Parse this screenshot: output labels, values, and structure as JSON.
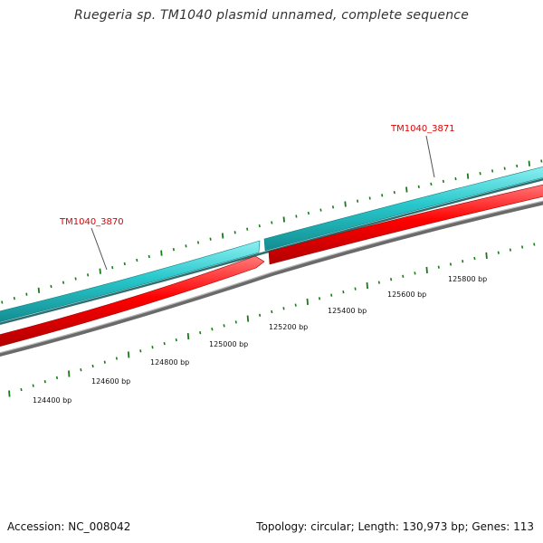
{
  "title": "Ruegeria sp. TM1040 plasmid unnamed, complete sequence",
  "genes": [
    {
      "id": "TM1040_3870",
      "strand": "reverse",
      "color": "#ff0000"
    },
    {
      "id": "TM1040_3871",
      "strand": "forward",
      "color": "#22c8cc"
    }
  ],
  "bp_ticks": [
    "124400 bp",
    "124600 bp",
    "124800 bp",
    "125000 bp",
    "125200 bp",
    "125400 bp",
    "125600 bp",
    "125800 bp"
  ],
  "colors": {
    "forward_track": "#22c8cc",
    "reverse_track": "#ff0000",
    "backbone": "#808080",
    "ticks": "#1a7a1a",
    "gene_label": "#e00000"
  },
  "footer": {
    "accession": "Accession: NC_008042",
    "summary": "Topology: circular; Length: 130,973 bp; Genes: 113"
  }
}
